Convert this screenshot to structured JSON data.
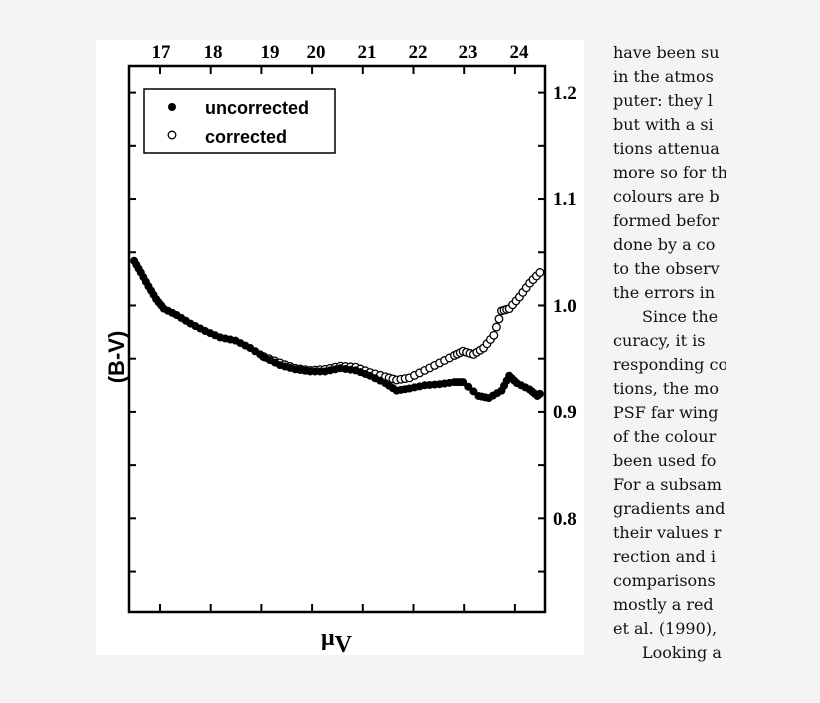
{
  "chart_data": {
    "type": "scatter",
    "ylabel": "(B-V)",
    "xlabel": "μ",
    "xlabel_subscript": "V",
    "xlim": [
      16.37,
      24.5
    ],
    "ylim": [
      0.712,
      1.225
    ],
    "top_axis_ticks": [
      "17",
      "18",
      "19",
      "20",
      "21",
      "22",
      "23",
      "24"
    ],
    "right_axis_ticks": [
      "1.2",
      "1.1",
      "1.0",
      "0.9",
      "0.8"
    ],
    "grid": false,
    "legend_position": "top-left",
    "series": [
      {
        "name": "uncorrected",
        "marker": "filled-circle",
        "x": [
          16.47,
          16.6,
          16.75,
          16.9,
          17.05,
          17.3,
          17.57,
          17.86,
          18.15,
          18.45,
          18.74,
          19.03,
          19.32,
          19.62,
          19.91,
          20.2,
          20.5,
          20.8,
          21.08,
          21.38,
          21.6,
          21.85,
          22.15,
          22.44,
          22.73,
          22.9,
          23.2,
          23.4,
          23.65,
          23.8,
          23.95,
          24.2,
          24.35,
          24.4
        ],
        "y": [
          1.042,
          1.031,
          1.018,
          1.006,
          0.997,
          0.991,
          0.983,
          0.976,
          0.97,
          0.967,
          0.96,
          0.951,
          0.944,
          0.94,
          0.938,
          0.938,
          0.941,
          0.939,
          0.934,
          0.927,
          0.92,
          0.922,
          0.925,
          0.926,
          0.928,
          0.928,
          0.915,
          0.913,
          0.92,
          0.934,
          0.927,
          0.921,
          0.915,
          0.917
        ]
      },
      {
        "name": "corrected",
        "marker": "open-circle",
        "x": [
          19.0,
          19.32,
          19.62,
          19.91,
          20.2,
          20.5,
          20.8,
          21.08,
          21.38,
          21.6,
          21.85,
          22.15,
          22.44,
          22.73,
          22.9,
          23.1,
          23.3,
          23.5,
          23.65,
          23.8,
          24.0,
          24.2,
          24.4
        ],
        "y": [
          0.952,
          0.946,
          0.941,
          0.939,
          0.94,
          0.943,
          0.942,
          0.937,
          0.933,
          0.93,
          0.932,
          0.939,
          0.946,
          0.953,
          0.957,
          0.954,
          0.96,
          0.972,
          0.995,
          0.997,
          1.008,
          1.021,
          1.031
        ]
      }
    ]
  },
  "legend": {
    "uncorrected": "uncorrected",
    "corrected": "corrected"
  },
  "text_lines": [
    "have been su",
    "in the atmos",
    "puter: they l",
    "but with a si",
    "tions attenua",
    "more so for th",
    "colours are b",
    "formed befor",
    "done by a co",
    "to the observ",
    "the errors in",
    "Since the",
    "curacy, it is",
    "responding co",
    "tions, the mo",
    "PSF far wing",
    "of the colour",
    "been used fo",
    "For a subsam",
    "gradients and",
    "their values r",
    "rection and i",
    "comparisons",
    "mostly a red",
    "et al. (1990),",
    "Looking a"
  ]
}
